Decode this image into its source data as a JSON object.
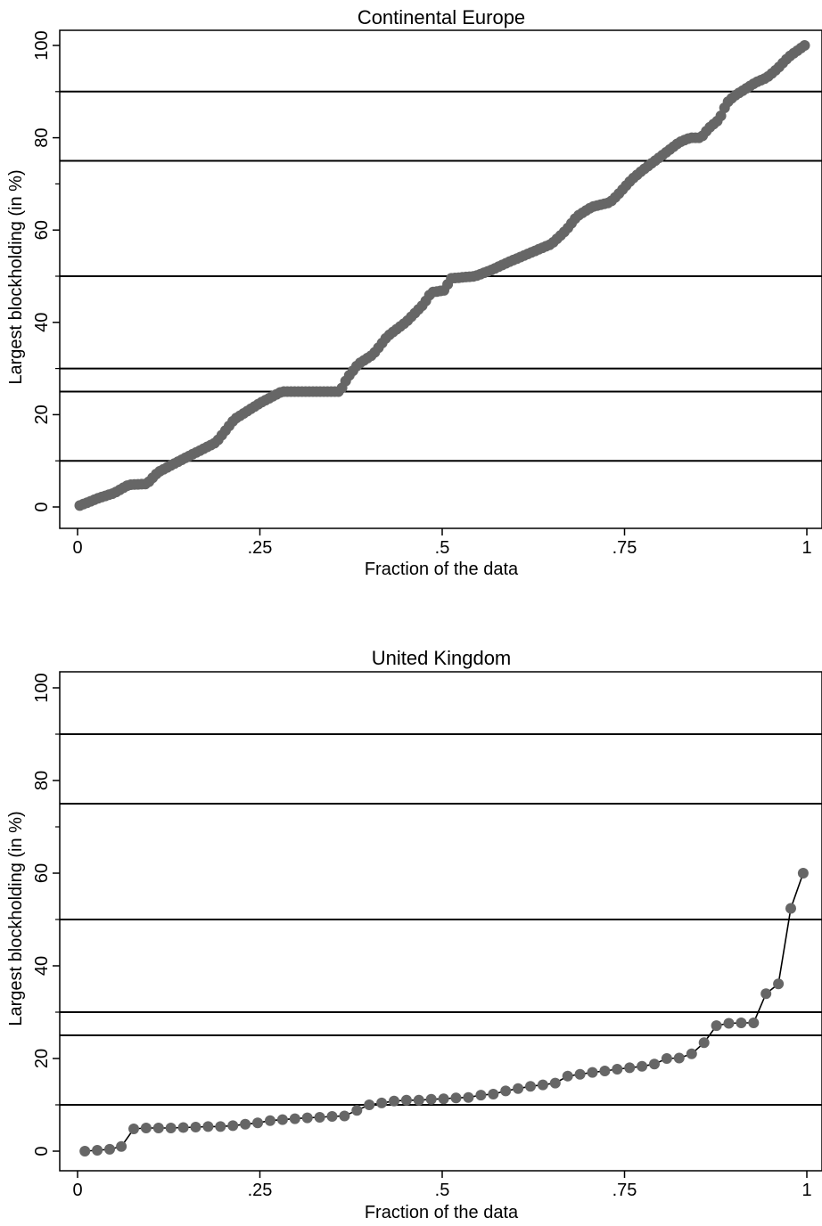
{
  "chart_data": [
    {
      "type": "scatter",
      "title": "Continental Europe",
      "xlabel": "Fraction of the data",
      "ylabel": "Largest blockholding (in %)",
      "xlim": [
        0,
        1
      ],
      "ylim": [
        0,
        100
      ],
      "x_ticks": [
        0,
        0.25,
        0.5,
        0.75,
        1
      ],
      "x_tick_labels": [
        "0",
        ".25",
        ".5",
        ".75",
        "1"
      ],
      "y_ticks": [
        0,
        20,
        40,
        60,
        80,
        100
      ],
      "y_tick_labels": [
        "0",
        "20",
        "40",
        "60",
        "80",
        "100"
      ],
      "reference_lines": [
        10,
        25,
        30,
        50,
        75,
        90
      ],
      "marker_color": "#666666",
      "line_color": "#000000",
      "curve": [
        [
          0.003,
          0.3
        ],
        [
          0.03,
          2
        ],
        [
          0.05,
          3
        ],
        [
          0.07,
          4.8
        ],
        [
          0.095,
          5
        ],
        [
          0.11,
          7.5
        ],
        [
          0.14,
          10
        ],
        [
          0.165,
          12
        ],
        [
          0.19,
          14
        ],
        [
          0.215,
          19
        ],
        [
          0.25,
          22.5
        ],
        [
          0.28,
          25
        ],
        [
          0.36,
          25
        ],
        [
          0.37,
          28
        ],
        [
          0.385,
          31
        ],
        [
          0.405,
          33
        ],
        [
          0.425,
          37
        ],
        [
          0.45,
          40
        ],
        [
          0.475,
          44
        ],
        [
          0.485,
          46.5
        ],
        [
          0.505,
          47
        ],
        [
          0.51,
          49.5
        ],
        [
          0.545,
          50
        ],
        [
          0.57,
          51.5
        ],
        [
          0.59,
          53
        ],
        [
          0.62,
          55
        ],
        [
          0.65,
          57
        ],
        [
          0.67,
          60
        ],
        [
          0.685,
          63
        ],
        [
          0.705,
          65
        ],
        [
          0.73,
          66
        ],
        [
          0.74,
          67.5
        ],
        [
          0.76,
          71
        ],
        [
          0.775,
          73
        ],
        [
          0.8,
          76
        ],
        [
          0.825,
          79
        ],
        [
          0.84,
          80
        ],
        [
          0.855,
          80
        ],
        [
          0.865,
          82
        ],
        [
          0.88,
          84
        ],
        [
          0.89,
          87.5
        ],
        [
          0.9,
          89
        ],
        [
          0.92,
          91
        ],
        [
          0.93,
          92
        ],
        [
          0.945,
          93
        ],
        [
          0.96,
          95
        ],
        [
          0.975,
          97.5
        ],
        [
          0.997,
          100
        ]
      ],
      "n_points": 200
    },
    {
      "type": "scatter",
      "title": "United Kingdom",
      "xlabel": "Fraction of the data",
      "ylabel": "Largest blockholding (in %)",
      "xlim": [
        0,
        1
      ],
      "ylim": [
        0,
        100
      ],
      "x_ticks": [
        0,
        0.25,
        0.5,
        0.75,
        1
      ],
      "x_tick_labels": [
        "0",
        ".25",
        ".5",
        ".75",
        "1"
      ],
      "y_ticks": [
        0,
        20,
        40,
        60,
        80,
        100
      ],
      "y_tick_labels": [
        "0",
        "20",
        "40",
        "60",
        "80",
        "100"
      ],
      "reference_lines": [
        10,
        25,
        30,
        50,
        75,
        90
      ],
      "marker_color": "#666666",
      "line_color": "#000000",
      "x": [
        0.01,
        0.027,
        0.044,
        0.06,
        0.077,
        0.094,
        0.111,
        0.128,
        0.145,
        0.162,
        0.179,
        0.196,
        0.213,
        0.23,
        0.247,
        0.264,
        0.281,
        0.298,
        0.315,
        0.332,
        0.349,
        0.366,
        0.383,
        0.4,
        0.417,
        0.434,
        0.451,
        0.468,
        0.485,
        0.502,
        0.519,
        0.536,
        0.553,
        0.57,
        0.587,
        0.604,
        0.621,
        0.638,
        0.655,
        0.672,
        0.689,
        0.706,
        0.723,
        0.74,
        0.757,
        0.774,
        0.791,
        0.808,
        0.825,
        0.842,
        0.859,
        0.876,
        0.893,
        0.91,
        0.927,
        0.944,
        0.961,
        0.978,
        0.995
      ],
      "y": [
        0,
        0.2,
        0.4,
        1,
        4.8,
        5,
        5,
        5,
        5.1,
        5.2,
        5.3,
        5.3,
        5.5,
        5.8,
        6.1,
        6.6,
        6.8,
        7,
        7.2,
        7.3,
        7.5,
        7.6,
        8.8,
        10,
        10.4,
        10.8,
        11,
        11,
        11.2,
        11.3,
        11.5,
        11.6,
        12.1,
        12.3,
        13,
        13.5,
        14,
        14.3,
        14.7,
        16.2,
        16.6,
        17,
        17.3,
        17.7,
        18,
        18.3,
        18.8,
        20,
        20.1,
        21,
        23.4,
        27.1,
        27.6,
        27.7,
        27.7,
        34,
        36.1,
        52.4,
        60
      ]
    }
  ]
}
